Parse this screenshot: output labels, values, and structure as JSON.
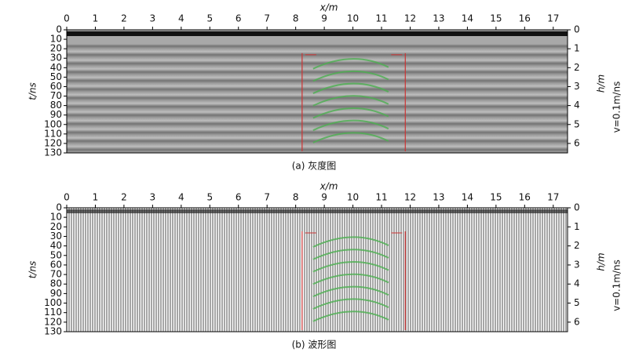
{
  "chart_data": [
    {
      "type": "radargram",
      "xlabel": "x/m",
      "ylabel": "t/ns",
      "y2label": "h/m",
      "velocity_label": "v=0.1m/ns",
      "caption": "(a) 灰度图",
      "xlim": [
        0,
        17.5
      ],
      "xticks": [
        0,
        1,
        2,
        3,
        4,
        5,
        6,
        7,
        8,
        9,
        10,
        11,
        12,
        13,
        14,
        15,
        16,
        17
      ],
      "ylim": [
        0,
        130
      ],
      "yticks": [
        0,
        10,
        20,
        30,
        40,
        50,
        60,
        70,
        80,
        90,
        100,
        110,
        120,
        130
      ],
      "y2lim": [
        0,
        6.5
      ],
      "y2ticks": [
        0,
        1,
        2,
        3,
        4,
        5,
        6
      ],
      "style": "grayscale"
    },
    {
      "type": "radargram",
      "xlabel": "x/m",
      "ylabel": "t/ns",
      "y2label": "h/m",
      "velocity_label": "v=0.1m/ns",
      "caption": "(b) 波形图",
      "xlim": [
        0,
        17.5
      ],
      "xticks": [
        0,
        1,
        2,
        3,
        4,
        5,
        6,
        7,
        8,
        9,
        10,
        11,
        12,
        13,
        14,
        15,
        16,
        17
      ],
      "ylim": [
        0,
        130
      ],
      "yticks": [
        0,
        10,
        20,
        30,
        40,
        50,
        60,
        70,
        80,
        90,
        100,
        110,
        120,
        130
      ],
      "y2lim": [
        0,
        6.5
      ],
      "y2ticks": [
        0,
        1,
        2,
        3,
        4,
        5,
        6
      ],
      "style": "wiggle"
    }
  ]
}
